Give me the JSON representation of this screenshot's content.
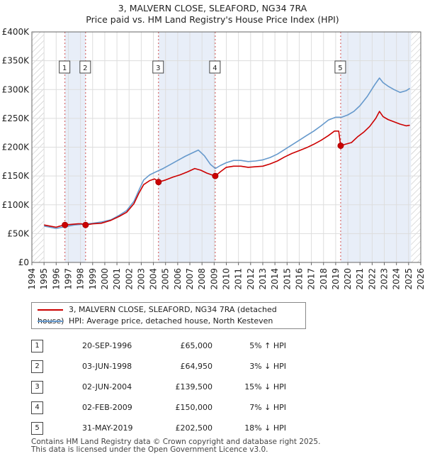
{
  "title": {
    "line1": "3, MALVERN CLOSE, SLEAFORD, NG34 7RA",
    "line2": "Price paid vs. HM Land Registry's House Price Index (HPI)"
  },
  "colors": {
    "price": "#cc0000",
    "hpi": "#6699cc",
    "shade": "#e8eef8",
    "grid": "#dddddd"
  },
  "chart_data": {
    "type": "line",
    "xlim": [
      1994,
      2026
    ],
    "ylim": [
      0,
      400000
    ],
    "x_ticks": [
      "1994",
      "1995",
      "1996",
      "1997",
      "1998",
      "1999",
      "2000",
      "2001",
      "2002",
      "2003",
      "2004",
      "2005",
      "2006",
      "2007",
      "2008",
      "2009",
      "2010",
      "2011",
      "2012",
      "2013",
      "2014",
      "2015",
      "2016",
      "2017",
      "2018",
      "2019",
      "2020",
      "2021",
      "2022",
      "2023",
      "2024",
      "2025",
      "2026"
    ],
    "y_ticks": [
      {
        "value": 0,
        "label": "£0"
      },
      {
        "value": 50000,
        "label": "£50K"
      },
      {
        "value": 100000,
        "label": "£100K"
      },
      {
        "value": 150000,
        "label": "£150K"
      },
      {
        "value": 200000,
        "label": "£200K"
      },
      {
        "value": 250000,
        "label": "£250K"
      },
      {
        "value": 300000,
        "label": "£300K"
      },
      {
        "value": 350000,
        "label": "£350K"
      },
      {
        "value": 400000,
        "label": "£400K"
      }
    ],
    "hatch_before": 1995,
    "hatch_after": 2025.2,
    "shaded_bands": [
      [
        1996.72,
        1998.42
      ],
      [
        2004.42,
        2009.09
      ],
      [
        2019.41,
        2025.2
      ]
    ],
    "series": [
      {
        "name": "3, MALVERN CLOSE, SLEAFORD, NG34 7RA (detached house)",
        "color": "#cc0000",
        "points": [
          [
            1995,
            65000
          ],
          [
            1995.5,
            63000
          ],
          [
            1996,
            61000
          ],
          [
            1996.3,
            63000
          ],
          [
            1996.72,
            65000
          ],
          [
            1997.2,
            66000
          ],
          [
            1997.8,
            67000
          ],
          [
            1998.1,
            67000
          ],
          [
            1998.42,
            64950
          ],
          [
            1999,
            67000
          ],
          [
            1999.7,
            68000
          ],
          [
            2000.5,
            73000
          ],
          [
            2001.2,
            80000
          ],
          [
            2001.8,
            87000
          ],
          [
            2002.4,
            102000
          ],
          [
            2002.8,
            120000
          ],
          [
            2003.2,
            135000
          ],
          [
            2003.7,
            142000
          ],
          [
            2004.1,
            145000
          ],
          [
            2004.42,
            139500
          ],
          [
            2005,
            143000
          ],
          [
            2005.6,
            148000
          ],
          [
            2006.2,
            152000
          ],
          [
            2006.8,
            157000
          ],
          [
            2007.4,
            163000
          ],
          [
            2007.9,
            160000
          ],
          [
            2008.4,
            155000
          ],
          [
            2008.8,
            152000
          ],
          [
            2009.09,
            150000
          ],
          [
            2009.5,
            157000
          ],
          [
            2010,
            165000
          ],
          [
            2010.6,
            167000
          ],
          [
            2011.2,
            167000
          ],
          [
            2011.8,
            165000
          ],
          [
            2012.4,
            166000
          ],
          [
            2013,
            167000
          ],
          [
            2013.6,
            171000
          ],
          [
            2014.2,
            176000
          ],
          [
            2014.8,
            183000
          ],
          [
            2015.4,
            189000
          ],
          [
            2016,
            194000
          ],
          [
            2016.6,
            199000
          ],
          [
            2017.2,
            205000
          ],
          [
            2017.8,
            212000
          ],
          [
            2018.4,
            220000
          ],
          [
            2018.9,
            228000
          ],
          [
            2019.25,
            228000
          ],
          [
            2019.41,
            202500
          ],
          [
            2019.8,
            205000
          ],
          [
            2020.3,
            208000
          ],
          [
            2020.8,
            218000
          ],
          [
            2021.3,
            226000
          ],
          [
            2021.8,
            236000
          ],
          [
            2022.3,
            250000
          ],
          [
            2022.6,
            262000
          ],
          [
            2022.9,
            253000
          ],
          [
            2023.3,
            248000
          ],
          [
            2023.8,
            244000
          ],
          [
            2024.3,
            240000
          ],
          [
            2024.8,
            237000
          ],
          [
            2025.1,
            238000
          ]
        ]
      },
      {
        "name": "HPI: Average price, detached house, North Kesteven",
        "color": "#6699cc",
        "points": [
          [
            1995,
            63000
          ],
          [
            1995.5,
            61000
          ],
          [
            1996,
            59000
          ],
          [
            1996.5,
            61000
          ],
          [
            1997,
            63000
          ],
          [
            1997.5,
            65000
          ],
          [
            1998,
            66000
          ],
          [
            1998.5,
            67000
          ],
          [
            1999,
            68000
          ],
          [
            1999.7,
            70000
          ],
          [
            2000.5,
            74000
          ],
          [
            2001.2,
            82000
          ],
          [
            2001.8,
            90000
          ],
          [
            2002.4,
            106000
          ],
          [
            2002.8,
            125000
          ],
          [
            2003.2,
            143000
          ],
          [
            2003.7,
            152000
          ],
          [
            2004.2,
            157000
          ],
          [
            2004.8,
            163000
          ],
          [
            2005.4,
            170000
          ],
          [
            2006,
            177000
          ],
          [
            2006.6,
            184000
          ],
          [
            2007.2,
            190000
          ],
          [
            2007.7,
            195000
          ],
          [
            2008.2,
            185000
          ],
          [
            2008.7,
            170000
          ],
          [
            2009.1,
            163000
          ],
          [
            2009.5,
            168000
          ],
          [
            2010,
            173000
          ],
          [
            2010.6,
            177000
          ],
          [
            2011.2,
            177000
          ],
          [
            2011.8,
            175000
          ],
          [
            2012.4,
            176000
          ],
          [
            2013,
            178000
          ],
          [
            2013.6,
            182000
          ],
          [
            2014.2,
            188000
          ],
          [
            2014.8,
            196000
          ],
          [
            2015.4,
            204000
          ],
          [
            2016,
            212000
          ],
          [
            2016.6,
            220000
          ],
          [
            2017.2,
            228000
          ],
          [
            2017.8,
            237000
          ],
          [
            2018.4,
            247000
          ],
          [
            2019,
            252000
          ],
          [
            2019.5,
            252000
          ],
          [
            2020,
            256000
          ],
          [
            2020.5,
            262000
          ],
          [
            2021,
            272000
          ],
          [
            2021.6,
            288000
          ],
          [
            2022.2,
            308000
          ],
          [
            2022.6,
            320000
          ],
          [
            2022.9,
            312000
          ],
          [
            2023.3,
            306000
          ],
          [
            2023.8,
            300000
          ],
          [
            2024.3,
            295000
          ],
          [
            2024.8,
            298000
          ],
          [
            2025.1,
            302000
          ]
        ]
      }
    ],
    "markers": [
      {
        "n": "1",
        "x": 1996.72,
        "y": 65000
      },
      {
        "n": "2",
        "x": 1998.42,
        "y": 64950
      },
      {
        "n": "3",
        "x": 2004.42,
        "y": 139500
      },
      {
        "n": "4",
        "x": 2009.09,
        "y": 150000
      },
      {
        "n": "5",
        "x": 2019.41,
        "y": 202500
      }
    ]
  },
  "legend": {
    "price_label": "3, MALVERN CLOSE, SLEAFORD, NG34 7RA (detached house)",
    "hpi_label": "HPI: Average price, detached house, North Kesteven"
  },
  "transactions": [
    {
      "n": "1",
      "date": "20-SEP-1996",
      "price": "£65,000",
      "hpi": "5% ↑ HPI"
    },
    {
      "n": "2",
      "date": "03-JUN-1998",
      "price": "£64,950",
      "hpi": "3% ↓ HPI"
    },
    {
      "n": "3",
      "date": "02-JUN-2004",
      "price": "£139,500",
      "hpi": "15% ↓ HPI"
    },
    {
      "n": "4",
      "date": "02-FEB-2009",
      "price": "£150,000",
      "hpi": "7% ↓ HPI"
    },
    {
      "n": "5",
      "date": "31-MAY-2019",
      "price": "£202,500",
      "hpi": "18% ↓ HPI"
    }
  ],
  "footer": {
    "line1": "Contains HM Land Registry data © Crown copyright and database right 2025.",
    "line2": "This data is licensed under the Open Government Licence v3.0."
  }
}
